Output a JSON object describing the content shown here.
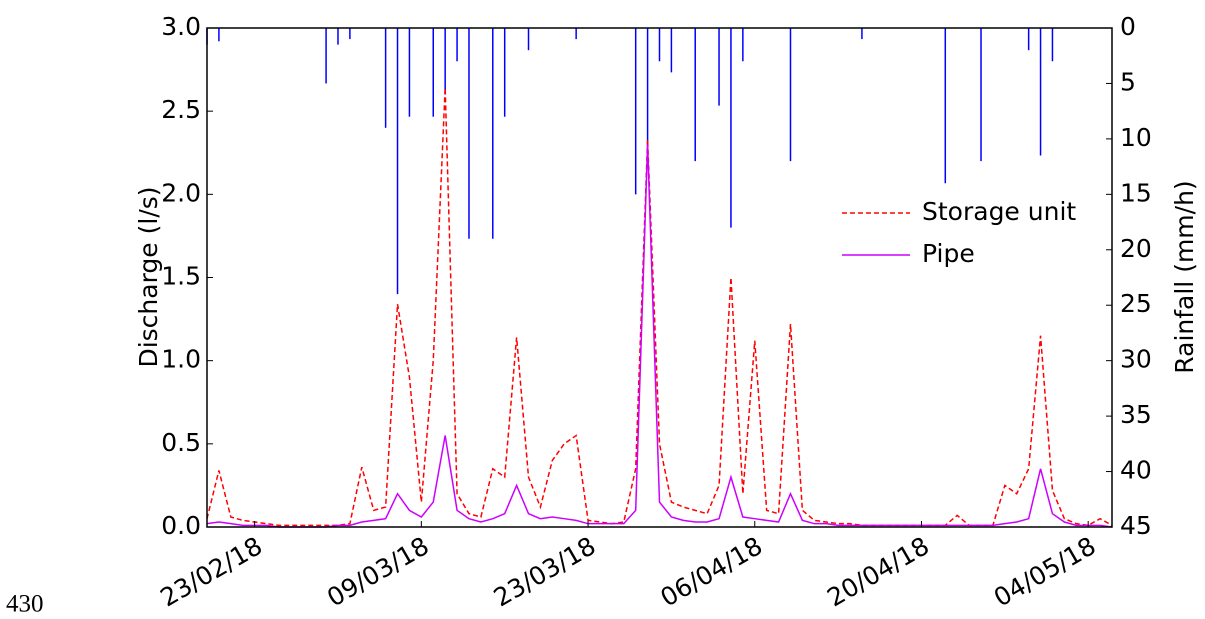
{
  "chart_data": {
    "type": "line",
    "x": [
      "2018-02-19",
      "2018-02-20",
      "2018-02-21",
      "2018-02-22",
      "2018-02-23",
      "2018-02-24",
      "2018-02-25",
      "2018-02-26",
      "2018-02-27",
      "2018-02-28",
      "2018-03-01",
      "2018-03-02",
      "2018-03-03",
      "2018-03-04",
      "2018-03-05",
      "2018-03-06",
      "2018-03-07",
      "2018-03-08",
      "2018-03-09",
      "2018-03-10",
      "2018-03-11",
      "2018-03-12",
      "2018-03-13",
      "2018-03-14",
      "2018-03-15",
      "2018-03-16",
      "2018-03-17",
      "2018-03-18",
      "2018-03-19",
      "2018-03-20",
      "2018-03-21",
      "2018-03-22",
      "2018-03-23",
      "2018-03-24",
      "2018-03-25",
      "2018-03-26",
      "2018-03-27",
      "2018-03-28",
      "2018-03-29",
      "2018-03-30",
      "2018-03-31",
      "2018-04-01",
      "2018-04-02",
      "2018-04-03",
      "2018-04-04",
      "2018-04-05",
      "2018-04-06",
      "2018-04-07",
      "2018-04-08",
      "2018-04-09",
      "2018-04-10",
      "2018-04-11",
      "2018-04-12",
      "2018-04-13",
      "2018-04-14",
      "2018-04-15",
      "2018-04-16",
      "2018-04-17",
      "2018-04-18",
      "2018-04-19",
      "2018-04-20",
      "2018-04-21",
      "2018-04-22",
      "2018-04-23",
      "2018-04-24",
      "2018-04-25",
      "2018-04-26",
      "2018-04-27",
      "2018-04-28",
      "2018-04-29",
      "2018-04-30",
      "2018-05-01",
      "2018-05-02",
      "2018-05-03",
      "2018-05-04",
      "2018-05-05",
      "2018-05-06"
    ],
    "series": [
      {
        "name": "Storage unit",
        "color": "#ff0000",
        "style": "dashed",
        "values": [
          0.05,
          0.34,
          0.06,
          0.04,
          0.03,
          0.02,
          0.01,
          0.01,
          0.01,
          0.01,
          0.01,
          0.01,
          0.02,
          0.36,
          0.1,
          0.12,
          1.34,
          0.9,
          0.15,
          1.0,
          2.64,
          0.2,
          0.08,
          0.06,
          0.35,
          0.3,
          1.14,
          0.3,
          0.12,
          0.4,
          0.5,
          0.55,
          0.04,
          0.03,
          0.02,
          0.03,
          0.35,
          2.33,
          0.5,
          0.15,
          0.12,
          0.1,
          0.08,
          0.25,
          1.5,
          0.2,
          1.12,
          0.1,
          0.08,
          1.22,
          0.1,
          0.04,
          0.03,
          0.02,
          0.02,
          0.01,
          0.01,
          0.01,
          0.01,
          0.01,
          0.01,
          0.01,
          0.01,
          0.07,
          0.01,
          0.01,
          0.01,
          0.25,
          0.2,
          0.35,
          1.15,
          0.22,
          0.05,
          0.02,
          0.01,
          0.05,
          0.01
        ]
      },
      {
        "name": "Pipe",
        "color": "#cc00ff",
        "style": "solid",
        "values": [
          0.02,
          0.03,
          0.02,
          0.01,
          0.01,
          0.01,
          0,
          0,
          0,
          0,
          0,
          0.01,
          0.01,
          0.03,
          0.04,
          0.05,
          0.2,
          0.1,
          0.06,
          0.15,
          0.55,
          0.1,
          0.05,
          0.03,
          0.05,
          0.08,
          0.25,
          0.08,
          0.05,
          0.06,
          0.05,
          0.04,
          0.02,
          0.02,
          0.02,
          0.02,
          0.1,
          2.3,
          0.15,
          0.06,
          0.04,
          0.03,
          0.03,
          0.05,
          0.3,
          0.06,
          0.05,
          0.04,
          0.03,
          0.2,
          0.04,
          0.02,
          0.02,
          0.01,
          0.01,
          0.01,
          0.01,
          0.01,
          0.01,
          0.01,
          0.01,
          0.01,
          0.01,
          0.01,
          0.01,
          0.01,
          0.01,
          0.02,
          0.03,
          0.05,
          0.35,
          0.08,
          0.03,
          0.01,
          0.01,
          0.01,
          0
        ]
      },
      {
        "type": "bar",
        "axis": "y2",
        "color": "#0000ff",
        "x": [
          "2018-02-19",
          "2018-02-20",
          "2018-03-01",
          "2018-03-02",
          "2018-03-03",
          "2018-03-06",
          "2018-03-07",
          "2018-03-08",
          "2018-03-10",
          "2018-03-11",
          "2018-03-12",
          "2018-03-13",
          "2018-03-15",
          "2018-03-16",
          "2018-03-18",
          "2018-03-22",
          "2018-03-27",
          "2018-03-28",
          "2018-03-29",
          "2018-03-30",
          "2018-04-01",
          "2018-04-03",
          "2018-04-04",
          "2018-04-05",
          "2018-04-09",
          "2018-04-15",
          "2018-04-22",
          "2018-04-25",
          "2018-04-29",
          "2018-04-30",
          "2018-05-01"
        ],
        "values": [
          1.5,
          1.2,
          5,
          1.5,
          1,
          9,
          24,
          8,
          8,
          6,
          3,
          19,
          19,
          8,
          2,
          1,
          15,
          11,
          3,
          4,
          12,
          7,
          18,
          3,
          12,
          1,
          14,
          12,
          2,
          11.5,
          3
        ]
      }
    ],
    "ylabel": "Discharge (l/s)",
    "y2label": "Rainfall (mm/h)",
    "xlim": [
      "2018-02-19",
      "2018-05-06"
    ],
    "xticks": [
      {
        "value": "2018-02-23",
        "label": "23/02/18"
      },
      {
        "value": "2018-03-09",
        "label": "09/03/18"
      },
      {
        "value": "2018-03-23",
        "label": "23/03/18"
      },
      {
        "value": "2018-04-06",
        "label": "06/04/18"
      },
      {
        "value": "2018-04-20",
        "label": "20/04/18"
      },
      {
        "value": "2018-05-04",
        "label": "04/05/18"
      }
    ],
    "ylim": [
      0,
      3
    ],
    "yticks": [
      {
        "value": 0,
        "label": "0.0"
      },
      0.5,
      {
        "value": 1,
        "label": "1.0"
      },
      1.5,
      {
        "value": 2,
        "label": "2.0"
      },
      2.5,
      {
        "value": 3,
        "label": "3.0"
      }
    ],
    "y2lim": [
      45,
      0
    ],
    "y2ticks": [
      0,
      5,
      10,
      15,
      20,
      25,
      30,
      35,
      40,
      45
    ],
    "legend": "right",
    "annotation": "430"
  }
}
